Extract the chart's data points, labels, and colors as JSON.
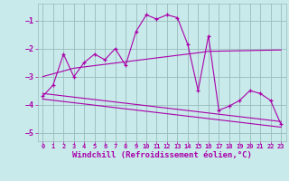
{
  "bg_color": "#c8eaea",
  "line_color": "#aa00aa",
  "grid_color": "#99bbbb",
  "xlabel": "Windchill (Refroidissement éolien,°C)",
  "xlabel_fontsize": 6.5,
  "tick_color": "#aa00aa",
  "xlim": [
    -0.5,
    23.5
  ],
  "ylim": [
    -5.3,
    -0.4
  ],
  "yticks": [
    -1,
    -2,
    -3,
    -4,
    -5
  ],
  "xticks": [
    0,
    1,
    2,
    3,
    4,
    5,
    6,
    7,
    8,
    9,
    10,
    11,
    12,
    13,
    14,
    15,
    16,
    17,
    18,
    19,
    20,
    21,
    22,
    23
  ],
  "main_x": [
    0,
    1,
    2,
    3,
    4,
    5,
    6,
    7,
    8,
    9,
    10,
    11,
    12,
    13,
    14,
    15,
    16,
    17,
    18,
    19,
    20,
    21,
    22,
    23
  ],
  "main_y": [
    -3.7,
    -3.3,
    -2.2,
    -3.0,
    -2.5,
    -2.2,
    -2.4,
    -2.0,
    -2.6,
    -1.4,
    -0.8,
    -0.95,
    -0.8,
    -0.9,
    -1.85,
    -3.5,
    -1.55,
    -4.2,
    -4.05,
    -3.85,
    -3.5,
    -3.6,
    -3.85,
    -4.7
  ],
  "trend1_x": [
    0,
    23
  ],
  "trend1_y": [
    -3.6,
    -4.6
  ],
  "trend2_x": [
    0,
    23
  ],
  "trend2_y": [
    -3.8,
    -4.8
  ],
  "mean_x": [
    0,
    3,
    15,
    16,
    23
  ],
  "mean_y": [
    -3.0,
    -2.7,
    -2.15,
    -2.1,
    -2.05
  ]
}
